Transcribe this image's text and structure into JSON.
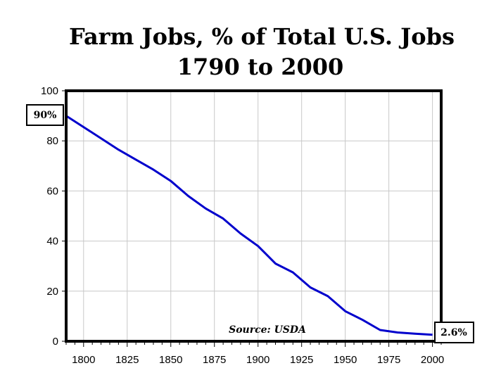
{
  "chart_data": {
    "type": "line",
    "title": "Farm Jobs, % of Total U.S. Jobs",
    "subtitle": "1790 to 2000",
    "xlabel": "",
    "ylabel": "",
    "xlim": [
      1790,
      2005
    ],
    "ylim": [
      0,
      100
    ],
    "x_ticks": [
      1800,
      1825,
      1850,
      1875,
      1900,
      1925,
      1950,
      1975,
      2000
    ],
    "y_ticks": [
      0,
      20,
      40,
      60,
      80,
      100
    ],
    "grid": true,
    "line_color": "#0000cc",
    "series": [
      {
        "x": [
          1790,
          1800,
          1810,
          1820,
          1830,
          1840,
          1850,
          1860,
          1870,
          1880,
          1890,
          1900,
          1910,
          1920,
          1930,
          1940,
          1950,
          1960,
          1970,
          1980,
          1990,
          2000
        ],
        "values": [
          90,
          85.5,
          81,
          76.5,
          72.5,
          68.5,
          64,
          58,
          53,
          49,
          43,
          38,
          31,
          27.5,
          21.5,
          18,
          12,
          8.5,
          4.5,
          3.5,
          3,
          2.6
        ]
      }
    ],
    "annotations": [
      {
        "text": "90%",
        "x": 1790,
        "y": 90
      },
      {
        "text": "2.6%",
        "x": 2000,
        "y": 2.6
      }
    ],
    "source_note": "Source: USDA"
  }
}
